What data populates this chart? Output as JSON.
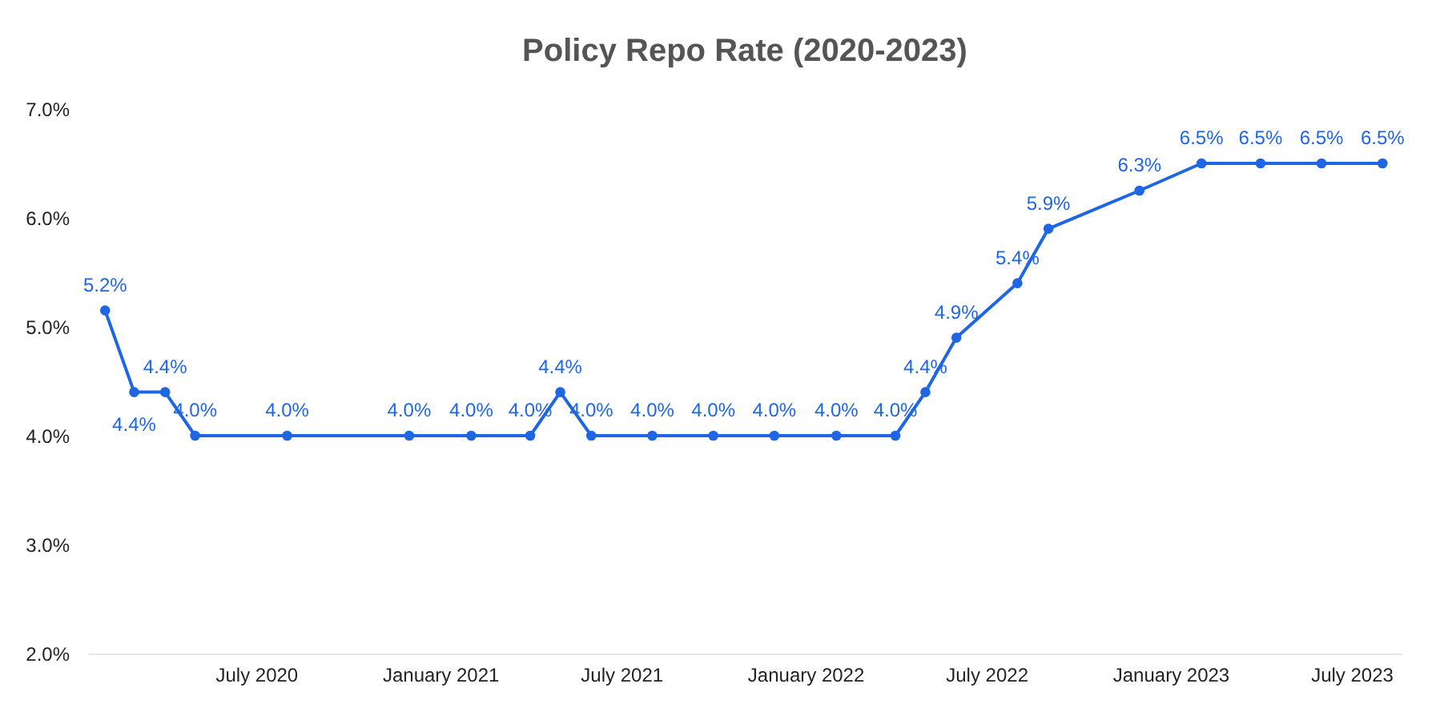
{
  "chart_data": {
    "type": "line",
    "title": "Policy Repo Rate (2020-2023)",
    "x": [
      "2020-02",
      "2020-03",
      "2020-04",
      "2020-05",
      "2020-08",
      "2020-12",
      "2021-02",
      "2021-04",
      "2021-05",
      "2021-06",
      "2021-08",
      "2021-10",
      "2021-12",
      "2022-02",
      "2022-04",
      "2022-05",
      "2022-06",
      "2022-08",
      "2022-09",
      "2022-12",
      "2023-02",
      "2023-04",
      "2023-06",
      "2023-08"
    ],
    "series": [
      {
        "color": "#1f66e5",
        "values": [
          5.15,
          4.4,
          4.4,
          4.0,
          4.0,
          4.0,
          4.0,
          4.0,
          4.4,
          4.0,
          4.0,
          4.0,
          4.0,
          4.0,
          4.0,
          4.4,
          4.9,
          5.4,
          5.9,
          6.25,
          6.5,
          6.5,
          6.5,
          6.5
        ],
        "value_labels": [
          "5.2%",
          "4.4%",
          "4.4%",
          "4.0%",
          "4.0%",
          "4.0%",
          "4.0%",
          "4.0%",
          "4.4%",
          "4.0%",
          "4.0%",
          "4.0%",
          "4.0%",
          "4.0%",
          "4.0%",
          "4.4%",
          "4.9%",
          "5.4%",
          "5.9%",
          "6.3%",
          "6.5%",
          "6.5%",
          "6.5%",
          "6.5%"
        ]
      }
    ],
    "xticks": [
      {
        "value": "2020-07",
        "label": "July 2020"
      },
      {
        "value": "2021-01",
        "label": "January 2021"
      },
      {
        "value": "2021-07",
        "label": "July 2021"
      },
      {
        "value": "2022-01",
        "label": "January 2022"
      },
      {
        "value": "2022-07",
        "label": "July 2022"
      },
      {
        "value": "2023-01",
        "label": "January 2023"
      },
      {
        "value": "2023-07",
        "label": "July 2023"
      }
    ],
    "xlim": [
      "2020-01-15",
      "2023-08-20"
    ],
    "ylim": [
      2,
      7
    ],
    "yticks": [
      {
        "value": 2,
        "label": "2.0%"
      },
      {
        "value": 3,
        "label": "3.0%"
      },
      {
        "value": 4,
        "label": "4.0%"
      },
      {
        "value": 5,
        "label": "5.0%"
      },
      {
        "value": 6,
        "label": "6.0%"
      },
      {
        "value": 7,
        "label": "7.0%"
      }
    ],
    "marker": "circle",
    "line_style": "solid"
  }
}
